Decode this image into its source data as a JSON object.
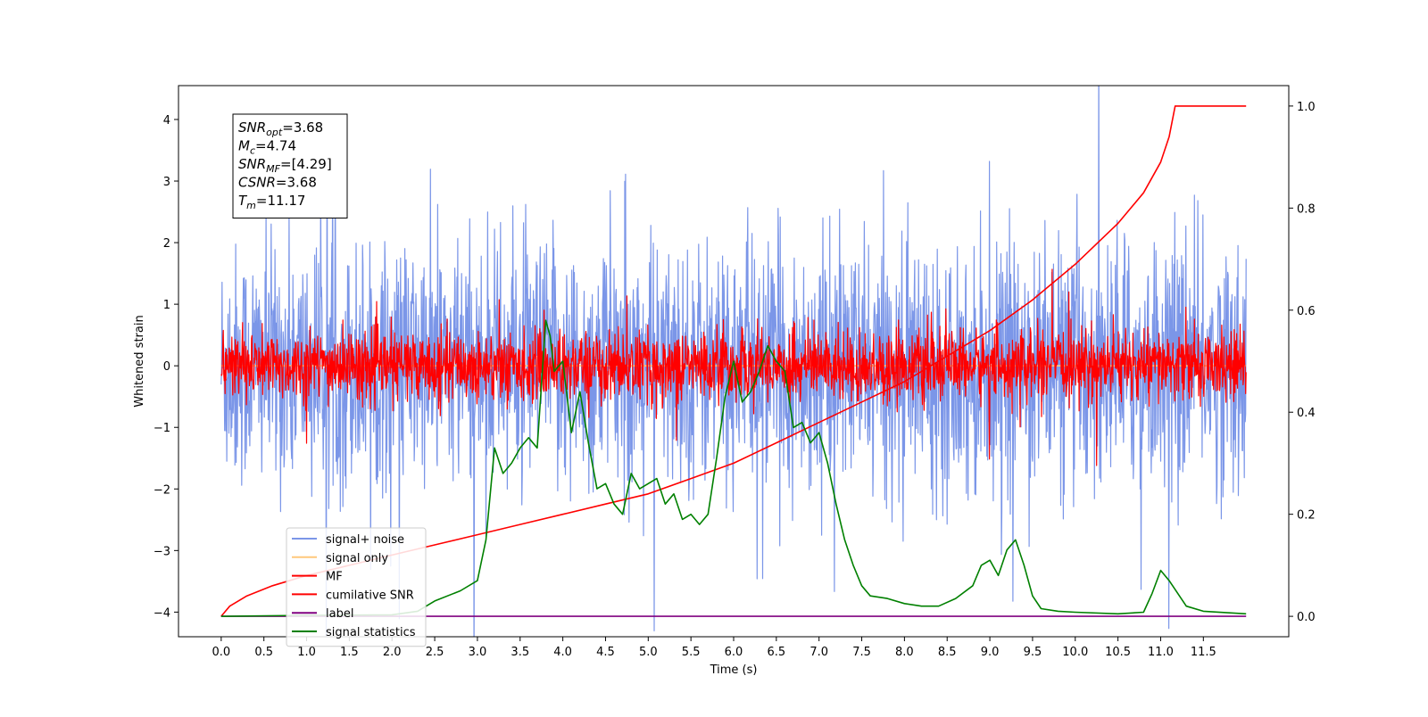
{
  "chart_data": {
    "type": "line",
    "xlabel": "Time (s)",
    "ylabel": "Whitened strain",
    "xlim": [
      -0.5,
      12.5
    ],
    "ylim": [
      -4.4,
      4.55
    ],
    "y2lim": [
      -0.04,
      1.04
    ],
    "x_ticks": [
      "0.0",
      "0.5",
      "1.0",
      "1.5",
      "2.0",
      "2.5",
      "3.0",
      "3.5",
      "4.0",
      "4.5",
      "5.0",
      "5.5",
      "6.0",
      "6.5",
      "7.0",
      "7.5",
      "8.0",
      "8.5",
      "9.0",
      "9.5",
      "10.0",
      "10.5",
      "11.0",
      "11.5"
    ],
    "y_ticks": [
      "4",
      "3",
      "2",
      "1",
      "0",
      "−1",
      "−2",
      "−3",
      "−4"
    ],
    "y2_ticks": [
      "1.0",
      "0.8",
      "0.6",
      "0.4",
      "0.2",
      "0.0"
    ],
    "grid": false,
    "legend_position": "lower-left",
    "annotation": {
      "lines": [
        {
          "main": "SNR",
          "sub": "opt",
          "rest": "=3.68"
        },
        {
          "main": "M",
          "sub": "c",
          "rest": "=4.74"
        },
        {
          "main": "SNR",
          "sub": "MF",
          "rest": "=[4.29]"
        },
        {
          "main": "CSNR",
          "sub": "",
          "rest": "=3.68"
        },
        {
          "main": "T",
          "sub": "m",
          "rest": "=11.17"
        }
      ]
    },
    "series": [
      {
        "name": "signal+ noise",
        "color": "#7b96e8",
        "axis": "left",
        "style": "noise",
        "center": 0.0,
        "amplitude": 1.25,
        "x_range": [
          0,
          12.0
        ]
      },
      {
        "name": "signal only",
        "color": "#ffc87c",
        "axis": "left",
        "style": "line",
        "x": [
          0,
          12.0
        ],
        "y": [
          0,
          0
        ]
      },
      {
        "name": "MF",
        "color": "#ff0000",
        "axis": "left",
        "style": "noise",
        "center": 0.0,
        "amplitude": 0.35,
        "x_range": [
          0,
          12.0
        ]
      },
      {
        "name": "cumilative SNR",
        "color": "#ff0000",
        "axis": "right",
        "style": "line",
        "x": [
          0,
          0.1,
          0.3,
          0.6,
          1.0,
          1.5,
          2.0,
          2.5,
          3.0,
          3.5,
          4.0,
          4.5,
          5.0,
          5.5,
          6.0,
          6.5,
          7.0,
          7.5,
          8.0,
          8.5,
          9.0,
          9.5,
          10.0,
          10.5,
          10.8,
          11.0,
          11.1,
          11.17,
          12.0
        ],
        "y": [
          0.0,
          0.02,
          0.04,
          0.06,
          0.08,
          0.1,
          0.12,
          0.14,
          0.16,
          0.18,
          0.2,
          0.22,
          0.24,
          0.27,
          0.3,
          0.34,
          0.38,
          0.42,
          0.46,
          0.51,
          0.56,
          0.62,
          0.69,
          0.77,
          0.83,
          0.89,
          0.94,
          1.0,
          1.0
        ]
      },
      {
        "name": "label",
        "color": "#800080",
        "axis": "right",
        "style": "line",
        "x": [
          0,
          12.0
        ],
        "y": [
          0,
          0
        ]
      },
      {
        "name": "signal statistics",
        "color": "#008000",
        "axis": "right",
        "style": "line",
        "x": [
          0,
          1.0,
          2.0,
          2.3,
          2.5,
          2.8,
          3.0,
          3.1,
          3.2,
          3.3,
          3.4,
          3.5,
          3.6,
          3.7,
          3.8,
          3.85,
          3.9,
          4.0,
          4.1,
          4.2,
          4.3,
          4.4,
          4.5,
          4.6,
          4.7,
          4.8,
          4.9,
          5.0,
          5.1,
          5.2,
          5.3,
          5.4,
          5.5,
          5.6,
          5.7,
          5.8,
          5.9,
          6.0,
          6.1,
          6.2,
          6.3,
          6.4,
          6.5,
          6.6,
          6.7,
          6.8,
          6.9,
          7.0,
          7.1,
          7.2,
          7.3,
          7.4,
          7.5,
          7.6,
          7.8,
          8.0,
          8.2,
          8.4,
          8.6,
          8.8,
          8.9,
          9.0,
          9.1,
          9.2,
          9.3,
          9.4,
          9.5,
          9.6,
          9.8,
          10.0,
          10.5,
          10.8,
          10.9,
          11.0,
          11.1,
          11.3,
          11.5,
          12.0
        ],
        "y": [
          0.0,
          0.002,
          0.003,
          0.01,
          0.03,
          0.05,
          0.07,
          0.15,
          0.33,
          0.28,
          0.3,
          0.33,
          0.35,
          0.33,
          0.58,
          0.55,
          0.48,
          0.5,
          0.36,
          0.44,
          0.34,
          0.25,
          0.26,
          0.22,
          0.2,
          0.28,
          0.25,
          0.26,
          0.27,
          0.22,
          0.24,
          0.19,
          0.2,
          0.18,
          0.2,
          0.31,
          0.43,
          0.5,
          0.42,
          0.44,
          0.48,
          0.53,
          0.5,
          0.48,
          0.37,
          0.38,
          0.34,
          0.36,
          0.3,
          0.22,
          0.15,
          0.1,
          0.06,
          0.04,
          0.035,
          0.025,
          0.02,
          0.02,
          0.035,
          0.06,
          0.1,
          0.11,
          0.08,
          0.13,
          0.15,
          0.1,
          0.04,
          0.015,
          0.01,
          0.008,
          0.005,
          0.008,
          0.045,
          0.09,
          0.07,
          0.02,
          0.01,
          0.005
        ]
      }
    ]
  }
}
